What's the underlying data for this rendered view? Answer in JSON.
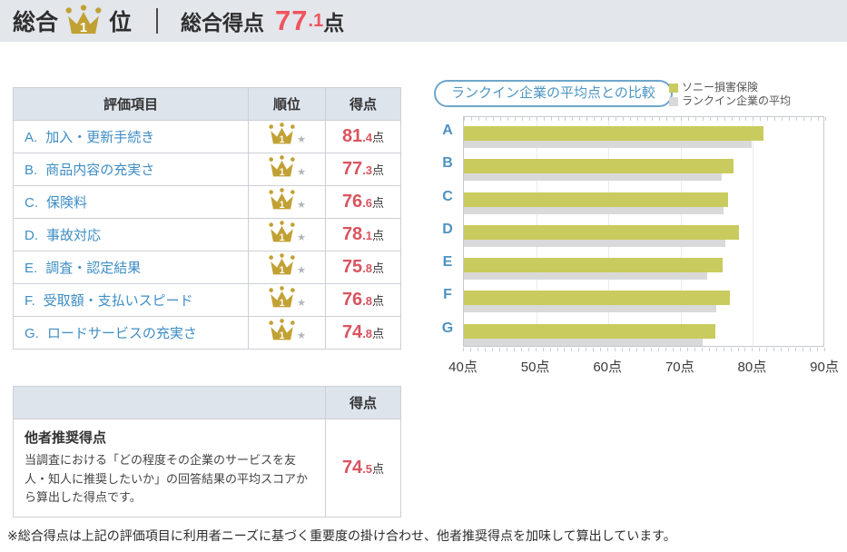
{
  "colors": {
    "accent_red": "#e8535e",
    "link_blue": "#3e8dc5",
    "crown_gold": "#c2a134",
    "header_bg": "#e3e6eb",
    "table_header_bg": "#dee4ec",
    "bar_primary": "#c9cb5e",
    "bar_average": "#d9d9d9"
  },
  "header": {
    "rank_prefix": "総合",
    "rank_value": "1",
    "rank_suffix": "位",
    "score_label": "総合得点",
    "score_value": "77.1",
    "score_unit": "点"
  },
  "score_table": {
    "headers": [
      "評価項目",
      "順位",
      "得点"
    ],
    "rank_value": "1",
    "unit": "点",
    "rows": [
      {
        "letter": "A.",
        "label": "加入・更新手続き",
        "score": "81.4"
      },
      {
        "letter": "B.",
        "label": "商品内容の充実さ",
        "score": "77.3"
      },
      {
        "letter": "C.",
        "label": "保険料",
        "score": "76.6"
      },
      {
        "letter": "D.",
        "label": "事故対応",
        "score": "78.1"
      },
      {
        "letter": "E.",
        "label": "調査・認定結果",
        "score": "75.8"
      },
      {
        "letter": "F.",
        "label": "受取額・支払いスピード",
        "score": "76.8"
      },
      {
        "letter": "G.",
        "label": "ロードサービスの充実さ",
        "score": "74.8"
      }
    ]
  },
  "recommend_table": {
    "header": "得点",
    "title": "他者推奨得点",
    "description": "当調査における「どの程度その企業のサービスを友人・知人に推奨したいか」の回答結果の平均スコアから算出した得点です。",
    "score": "74.5",
    "unit": "点"
  },
  "footnote": "※総合得点は上記の評価項目に利用者ニーズに基づく重要度の掛け合わせ、他者推奨得点を加味して算出しています。",
  "chart_data": {
    "type": "bar",
    "orientation": "horizontal",
    "title": "ランクイン企業の平均点との比較",
    "categories": [
      "A",
      "B",
      "C",
      "D",
      "E",
      "F",
      "G"
    ],
    "series": [
      {
        "name": "ソニー損害保険",
        "color": "#c9cb5e",
        "values": [
          81.4,
          77.3,
          76.6,
          78.1,
          75.8,
          76.8,
          74.8
        ]
      },
      {
        "name": "ランクイン企業の平均",
        "color": "#d9d9d9",
        "values": [
          79.8,
          75.7,
          75.9,
          76.2,
          73.7,
          74.9,
          73.0
        ]
      }
    ],
    "xlim": [
      40,
      90
    ],
    "xtick_labels": [
      "40点",
      "50点",
      "60点",
      "70点",
      "80点",
      "90点"
    ],
    "gridlines_at": [
      50,
      60,
      70,
      80
    ],
    "minor_tick_step": 1,
    "grid": true,
    "legend_position": "top-right"
  }
}
